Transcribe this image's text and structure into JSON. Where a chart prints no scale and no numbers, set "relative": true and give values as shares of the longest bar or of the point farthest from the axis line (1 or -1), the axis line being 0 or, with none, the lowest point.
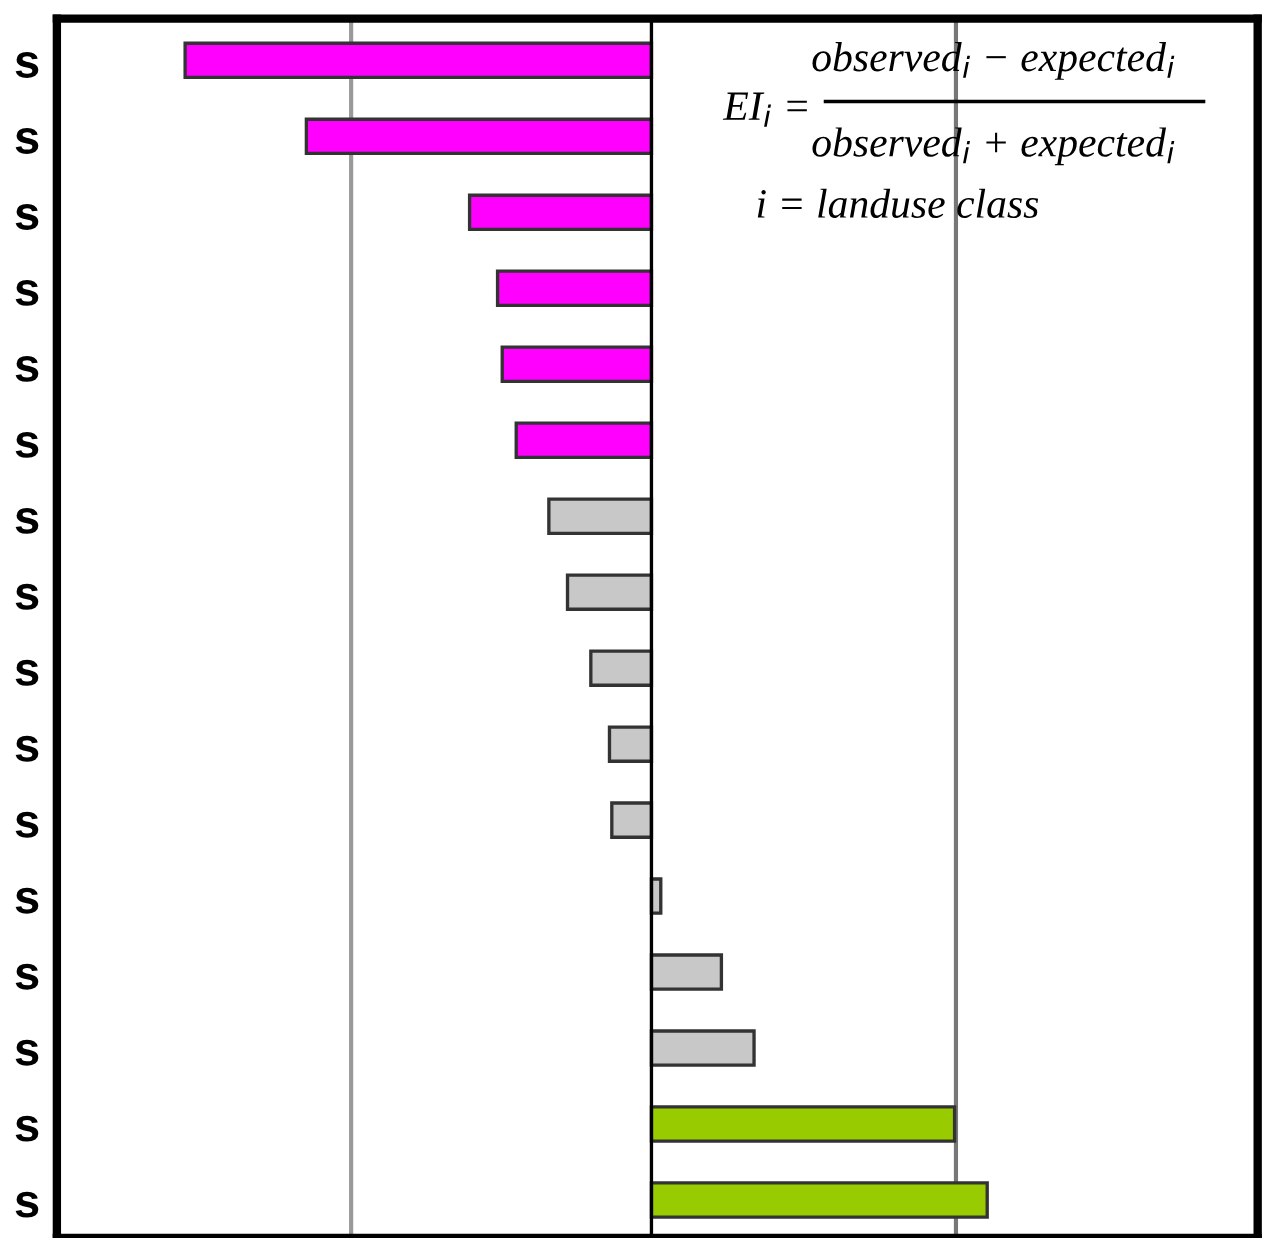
{
  "chart_data": {
    "type": "bar",
    "orientation": "horizontal",
    "relative": true,
    "categories": [
      "s",
      "s",
      "s",
      "s",
      "s",
      "s",
      "s",
      "s",
      "s",
      "s",
      "s",
      "s",
      "s",
      "s",
      "s",
      "s"
    ],
    "values": [
      -1,
      -0.74,
      -0.39,
      -0.33,
      -0.32,
      -0.29,
      -0.22,
      -0.18,
      -0.13,
      -0.09,
      -0.085,
      0.02,
      0.15,
      0.22,
      0.65,
      0.72
    ],
    "colors": [
      "#ff00ff",
      "#ff00ff",
      "#ff00ff",
      "#ff00ff",
      "#ff00ff",
      "#ff00ff",
      "#c8c8c8",
      "#c8c8c8",
      "#c8c8c8",
      "#c8c8c8",
      "#c8c8c8",
      "#c8c8c8",
      "#c8c8c8",
      "#c8c8c8",
      "#99cc00",
      "#99cc00"
    ],
    "ref_lines": [
      {
        "axis": "x",
        "value": -0.644,
        "color": "#999999"
      },
      {
        "axis": "x",
        "value": 0.653,
        "color": "#777777"
      }
    ],
    "annotations": [
      "EI$_{i}$ =",
      "observed$_{i}$ − expected$_{i}$",
      "observed$_{i}$ + expected$_{i}$",
      "i = landuse class"
    ],
    "grid": false,
    "legend": false
  }
}
